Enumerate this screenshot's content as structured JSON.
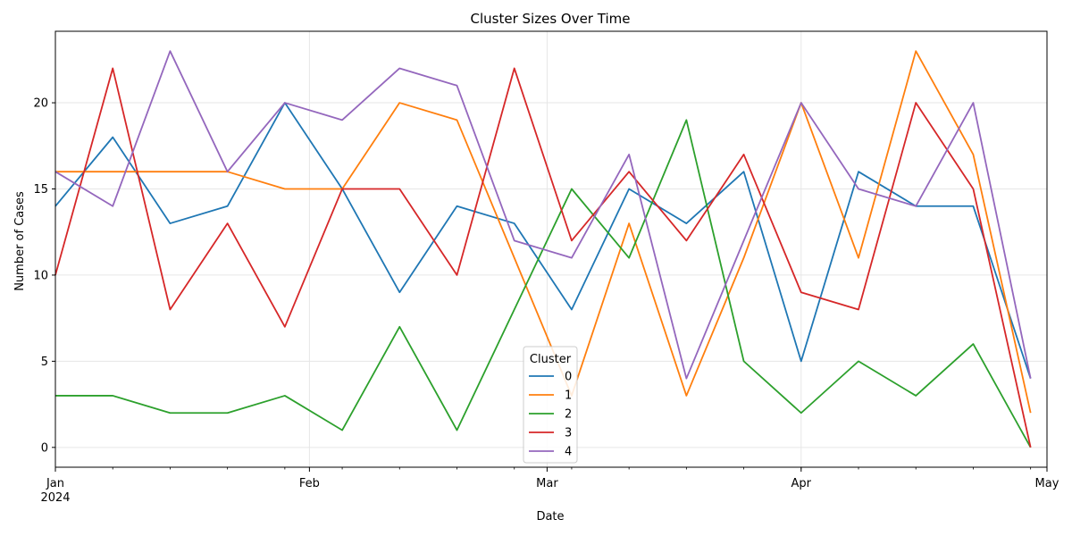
{
  "chart_data": {
    "type": "line",
    "title": "Cluster Sizes Over Time",
    "xlabel": "Date",
    "ylabel": "Number of Cases",
    "x_start": "2024-01-01",
    "x": [
      "2024-01-01",
      "2024-01-08",
      "2024-01-15",
      "2024-01-22",
      "2024-01-29",
      "2024-02-05",
      "2024-02-12",
      "2024-02-19",
      "2024-02-26",
      "2024-03-04",
      "2024-03-11",
      "2024-03-18",
      "2024-03-25",
      "2024-04-01",
      "2024-04-08",
      "2024-04-15",
      "2024-04-22",
      "2024-04-29"
    ],
    "x_major_ticks": [
      {
        "date": "2024-01-01",
        "label": "Jan",
        "sublabel": "2024"
      },
      {
        "date": "2024-02-01",
        "label": "Feb",
        "sublabel": ""
      },
      {
        "date": "2024-03-01",
        "label": "Mar",
        "sublabel": ""
      },
      {
        "date": "2024-04-01",
        "label": "Apr",
        "sublabel": ""
      },
      {
        "date": "2024-05-01",
        "label": "May",
        "sublabel": ""
      }
    ],
    "xlim": [
      "2024-01-01",
      "2024-05-01"
    ],
    "yticks": [
      "0",
      "5",
      "10",
      "15",
      "20"
    ],
    "ylim": [
      -1.15,
      24.15
    ],
    "grid": true,
    "legend": {
      "title": "Cluster",
      "placement": "bottom-center"
    },
    "series": [
      {
        "name": "0",
        "color": "#1f77b4",
        "values": [
          14,
          18,
          13,
          14,
          20,
          15,
          9,
          14,
          13,
          8,
          15,
          13,
          16,
          5,
          16,
          14,
          14,
          4
        ]
      },
      {
        "name": "1",
        "color": "#ff7f0e",
        "values": [
          16,
          16,
          16,
          16,
          15,
          15,
          20,
          19,
          11,
          3,
          13,
          3,
          11,
          20,
          11,
          23,
          17,
          2
        ]
      },
      {
        "name": "2",
        "color": "#2ca02c",
        "values": [
          3,
          3,
          2,
          2,
          3,
          1,
          7,
          1,
          8,
          15,
          11,
          19,
          5,
          2,
          5,
          3,
          6,
          0
        ]
      },
      {
        "name": "3",
        "color": "#d62728",
        "values": [
          10,
          22,
          8,
          13,
          7,
          15,
          15,
          10,
          22,
          12,
          16,
          12,
          17,
          9,
          8,
          20,
          15,
          0
        ]
      },
      {
        "name": "4",
        "color": "#9467bd",
        "values": [
          16,
          14,
          23,
          16,
          20,
          19,
          22,
          21,
          12,
          11,
          17,
          4,
          12,
          20,
          15,
          14,
          20,
          4
        ]
      }
    ]
  }
}
